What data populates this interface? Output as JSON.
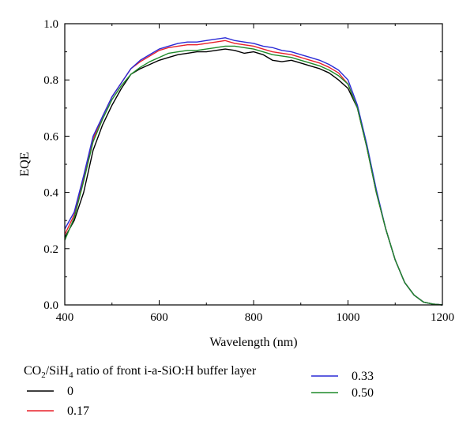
{
  "chart_data": {
    "type": "line",
    "xlabel": "Wavelength (nm)",
    "ylabel": "EQE",
    "xlim": [
      400,
      1200
    ],
    "ylim": [
      0,
      1.0
    ],
    "x_ticks": [
      "400",
      "600",
      "800",
      "1000",
      "1200"
    ],
    "y_ticks": [
      "0.0",
      "0.2",
      "0.4",
      "0.6",
      "0.8",
      "1.0"
    ],
    "grid": false,
    "legend": {
      "placement": "bottom",
      "title_parts": [
        "CO",
        "2",
        "/SiH",
        "4",
        " ratio of front i-a-SiO:H buffer layer"
      ]
    },
    "series": [
      {
        "name": "0",
        "color": "#000000",
        "points": [
          [
            400,
            0.24
          ],
          [
            420,
            0.3
          ],
          [
            440,
            0.4
          ],
          [
            460,
            0.55
          ],
          [
            480,
            0.64
          ],
          [
            500,
            0.71
          ],
          [
            520,
            0.77
          ],
          [
            540,
            0.82
          ],
          [
            560,
            0.84
          ],
          [
            580,
            0.855
          ],
          [
            600,
            0.87
          ],
          [
            620,
            0.88
          ],
          [
            640,
            0.89
          ],
          [
            660,
            0.895
          ],
          [
            680,
            0.9
          ],
          [
            700,
            0.9
          ],
          [
            720,
            0.905
          ],
          [
            740,
            0.91
          ],
          [
            760,
            0.905
          ],
          [
            780,
            0.895
          ],
          [
            800,
            0.9
          ],
          [
            820,
            0.89
          ],
          [
            840,
            0.87
          ],
          [
            860,
            0.865
          ],
          [
            880,
            0.87
          ],
          [
            900,
            0.86
          ],
          [
            920,
            0.85
          ],
          [
            940,
            0.84
          ],
          [
            960,
            0.825
          ],
          [
            980,
            0.8
          ],
          [
            1000,
            0.77
          ],
          [
            1020,
            0.7
          ],
          [
            1040,
            0.56
          ],
          [
            1060,
            0.4
          ],
          [
            1080,
            0.27
          ],
          [
            1100,
            0.16
          ],
          [
            1120,
            0.08
          ],
          [
            1140,
            0.035
          ],
          [
            1160,
            0.01
          ],
          [
            1180,
            0.003
          ],
          [
            1200,
            0.0
          ]
        ]
      },
      {
        "name": "0.17",
        "color": "#e8202a",
        "points": [
          [
            400,
            0.25
          ],
          [
            420,
            0.32
          ],
          [
            440,
            0.45
          ],
          [
            460,
            0.59
          ],
          [
            480,
            0.67
          ],
          [
            500,
            0.74
          ],
          [
            520,
            0.79
          ],
          [
            540,
            0.84
          ],
          [
            560,
            0.865
          ],
          [
            580,
            0.885
          ],
          [
            600,
            0.905
          ],
          [
            620,
            0.915
          ],
          [
            640,
            0.92
          ],
          [
            660,
            0.925
          ],
          [
            680,
            0.925
          ],
          [
            700,
            0.93
          ],
          [
            720,
            0.935
          ],
          [
            740,
            0.94
          ],
          [
            760,
            0.93
          ],
          [
            780,
            0.925
          ],
          [
            800,
            0.92
          ],
          [
            820,
            0.91
          ],
          [
            840,
            0.9
          ],
          [
            860,
            0.895
          ],
          [
            880,
            0.89
          ],
          [
            900,
            0.88
          ],
          [
            920,
            0.87
          ],
          [
            940,
            0.86
          ],
          [
            960,
            0.845
          ],
          [
            980,
            0.825
          ],
          [
            1000,
            0.785
          ],
          [
            1020,
            0.7
          ],
          [
            1040,
            0.56
          ],
          [
            1060,
            0.4
          ],
          [
            1080,
            0.27
          ],
          [
            1100,
            0.16
          ],
          [
            1120,
            0.08
          ],
          [
            1140,
            0.035
          ],
          [
            1160,
            0.01
          ],
          [
            1180,
            0.003
          ],
          [
            1200,
            0.0
          ]
        ]
      },
      {
        "name": "0.33",
        "color": "#2a2ad6",
        "points": [
          [
            400,
            0.27
          ],
          [
            420,
            0.33
          ],
          [
            440,
            0.46
          ],
          [
            460,
            0.6
          ],
          [
            480,
            0.67
          ],
          [
            500,
            0.74
          ],
          [
            520,
            0.79
          ],
          [
            540,
            0.84
          ],
          [
            560,
            0.87
          ],
          [
            580,
            0.89
          ],
          [
            600,
            0.91
          ],
          [
            620,
            0.92
          ],
          [
            640,
            0.93
          ],
          [
            660,
            0.935
          ],
          [
            680,
            0.935
          ],
          [
            700,
            0.94
          ],
          [
            720,
            0.945
          ],
          [
            740,
            0.95
          ],
          [
            760,
            0.94
          ],
          [
            780,
            0.935
          ],
          [
            800,
            0.93
          ],
          [
            820,
            0.92
          ],
          [
            840,
            0.915
          ],
          [
            860,
            0.905
          ],
          [
            880,
            0.9
          ],
          [
            900,
            0.89
          ],
          [
            920,
            0.88
          ],
          [
            940,
            0.87
          ],
          [
            960,
            0.855
          ],
          [
            980,
            0.835
          ],
          [
            1000,
            0.8
          ],
          [
            1020,
            0.71
          ],
          [
            1040,
            0.57
          ],
          [
            1060,
            0.41
          ],
          [
            1080,
            0.27
          ],
          [
            1100,
            0.16
          ],
          [
            1120,
            0.08
          ],
          [
            1140,
            0.035
          ],
          [
            1160,
            0.01
          ],
          [
            1180,
            0.003
          ],
          [
            1200,
            0.0
          ]
        ]
      },
      {
        "name": "0.50",
        "color": "#1f8a2a",
        "points": [
          [
            400,
            0.23
          ],
          [
            420,
            0.31
          ],
          [
            440,
            0.44
          ],
          [
            460,
            0.58
          ],
          [
            480,
            0.66
          ],
          [
            500,
            0.73
          ],
          [
            520,
            0.78
          ],
          [
            540,
            0.82
          ],
          [
            560,
            0.845
          ],
          [
            580,
            0.865
          ],
          [
            600,
            0.88
          ],
          [
            620,
            0.895
          ],
          [
            640,
            0.9
          ],
          [
            660,
            0.905
          ],
          [
            680,
            0.905
          ],
          [
            700,
            0.91
          ],
          [
            720,
            0.915
          ],
          [
            740,
            0.92
          ],
          [
            760,
            0.92
          ],
          [
            780,
            0.915
          ],
          [
            800,
            0.91
          ],
          [
            820,
            0.9
          ],
          [
            840,
            0.89
          ],
          [
            860,
            0.885
          ],
          [
            880,
            0.88
          ],
          [
            900,
            0.87
          ],
          [
            920,
            0.86
          ],
          [
            940,
            0.85
          ],
          [
            960,
            0.835
          ],
          [
            980,
            0.815
          ],
          [
            1000,
            0.785
          ],
          [
            1020,
            0.7
          ],
          [
            1040,
            0.56
          ],
          [
            1060,
            0.4
          ],
          [
            1080,
            0.27
          ],
          [
            1100,
            0.16
          ],
          [
            1120,
            0.08
          ],
          [
            1140,
            0.035
          ],
          [
            1160,
            0.01
          ],
          [
            1180,
            0.003
          ],
          [
            1200,
            0.0
          ]
        ]
      }
    ]
  }
}
